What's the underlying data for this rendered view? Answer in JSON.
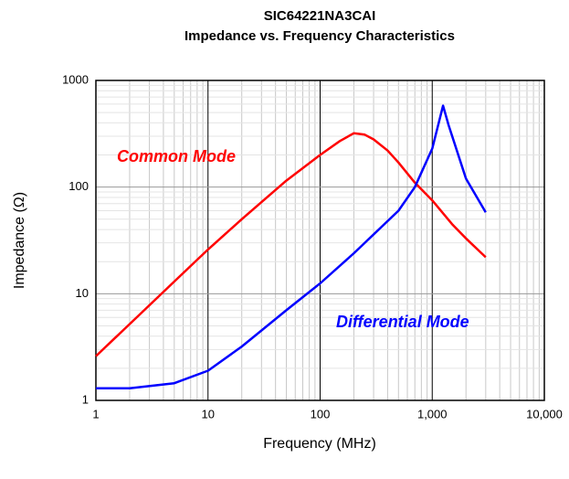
{
  "chart_data": {
    "type": "line",
    "title": "SIC64221NA3CAI",
    "subtitle": "Impedance vs. Frequency Characteristics",
    "x_label": "Frequency (MHz)",
    "y_label": "Impedance (Ω)",
    "xscale": "log",
    "yscale": "log",
    "grid": true,
    "xlim": [
      1,
      10000
    ],
    "xticks": [
      1,
      10,
      100,
      {
        "value": 1000,
        "label": "1,000"
      },
      {
        "value": 10000,
        "label": "10,000"
      }
    ],
    "ylim": [
      1,
      1000
    ],
    "yticks": [
      1,
      10,
      100,
      1000
    ],
    "series": [
      {
        "name": "Common Mode",
        "color": "#ff0000",
        "x": [
          1,
          2,
          5,
          10,
          20,
          50,
          100,
          150,
          200,
          250,
          300,
          400,
          500,
          700,
          1000,
          1500,
          2000,
          3000
        ],
        "values": [
          2.6,
          5.2,
          13,
          26,
          50,
          115,
          200,
          270,
          320,
          310,
          280,
          220,
          170,
          110,
          75,
          45,
          33,
          22
        ]
      },
      {
        "name": "Differential Mode",
        "color": "#0000ff",
        "x": [
          1,
          2,
          5,
          10,
          20,
          50,
          100,
          200,
          500,
          700,
          1000,
          1250,
          1400,
          2000,
          3000
        ],
        "values": [
          1.3,
          1.3,
          1.45,
          1.9,
          3.2,
          7,
          12.5,
          24,
          60,
          100,
          230,
          580,
          380,
          120,
          58
        ]
      }
    ]
  }
}
